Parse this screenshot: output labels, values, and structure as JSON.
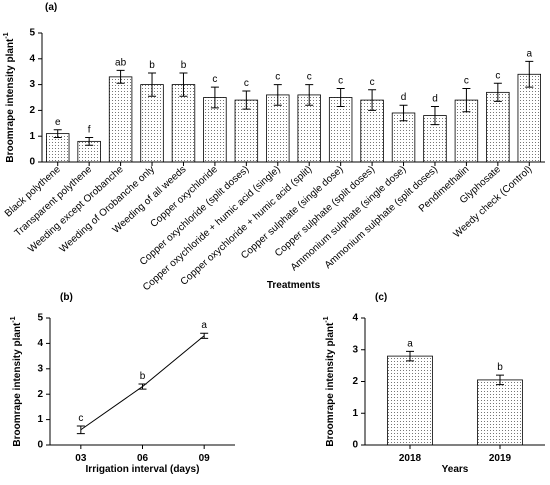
{
  "chart_data": [
    {
      "type": "bar",
      "panel_label": "(a)",
      "ylabel": "Broomrape intensity plant",
      "ylabel_superscript": "-1",
      "xlabel": "Treatments",
      "categories": [
        "Black polythene",
        "Transparent polythene",
        "Weeding except Orobanche",
        "Weeding of Orobanche only",
        "Weeding of all weeds",
        "Copper oxychloride",
        "Copper oxychloride (split doses)",
        "Copper oxychloride + humic acid (single)",
        "Copper oxychloride + humic acid (split)",
        "Copper sulphate (single dose)",
        "Copper sulphate (split doses)",
        "Ammonium sulphate (single dose)",
        "Ammonium sulphate (split doses)",
        "Pendimethalin",
        "Glyphosate",
        "Weedy check (Control)"
      ],
      "values": [
        1.1,
        0.8,
        3.3,
        3.0,
        3.0,
        2.5,
        2.4,
        2.6,
        2.6,
        2.5,
        2.4,
        1.9,
        1.8,
        2.4,
        2.7,
        3.4
      ],
      "errors": [
        0.15,
        0.15,
        0.25,
        0.45,
        0.45,
        0.4,
        0.35,
        0.4,
        0.4,
        0.35,
        0.4,
        0.3,
        0.35,
        0.45,
        0.35,
        0.5
      ],
      "letters": [
        "e",
        "f",
        "ab",
        "b",
        "b",
        "c",
        "c",
        "c",
        "c",
        "c",
        "c",
        "d",
        "d",
        "c",
        "c",
        "a"
      ],
      "ylim": [
        0,
        5
      ],
      "yticks": [
        0,
        1,
        2,
        3,
        4,
        5
      ],
      "color": "#ffffff"
    },
    {
      "type": "line",
      "panel_label": "(b)",
      "ylabel": "Broomrape intensity plant",
      "ylabel_superscript": "-1",
      "xlabel": "Irrigation interval (days)",
      "categories": [
        "03",
        "06",
        "09"
      ],
      "values": [
        0.6,
        2.3,
        4.3
      ],
      "errors": [
        0.15,
        0.1,
        0.1
      ],
      "letters": [
        "c",
        "b",
        "a"
      ],
      "ylim": [
        0,
        5
      ],
      "yticks": [
        0,
        1,
        2,
        3,
        4,
        5
      ],
      "color": "#000000"
    },
    {
      "type": "bar",
      "panel_label": "(c)",
      "ylabel": "Broomrape intensity plant",
      "ylabel_superscript": "-1",
      "xlabel": "Years",
      "categories": [
        "2018",
        "2019"
      ],
      "values": [
        2.8,
        2.05
      ],
      "errors": [
        0.15,
        0.15
      ],
      "letters": [
        "a",
        "b"
      ],
      "ylim": [
        0,
        4
      ],
      "yticks": [
        0,
        1,
        2,
        3,
        4
      ],
      "color": "#ffffff"
    }
  ]
}
